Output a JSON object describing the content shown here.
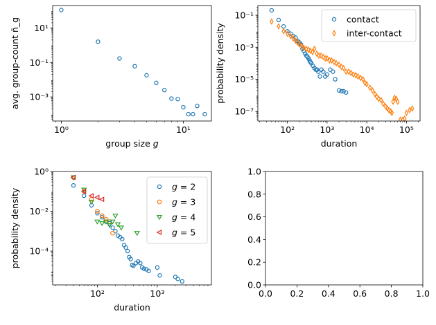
{
  "colors": {
    "blue": "#1f77b4",
    "orange": "#ff7f0e",
    "green": "#2ca02c",
    "red": "#d62728"
  },
  "chart_data": [
    {
      "type": "scatter",
      "xlabel": "group size g",
      "ylabel": "avg. group-count n̄_g",
      "xscale": "log",
      "yscale": "log",
      "xlim": [
        0.85,
        17
      ],
      "ylim": [
        4e-05,
        200
      ],
      "x_ticks": [
        {
          "value": 1,
          "label": "10⁰"
        },
        {
          "value": 10,
          "label": "10¹"
        }
      ],
      "y_ticks": [
        {
          "value": 0.001,
          "label": "10⁻³"
        },
        {
          "value": 0.1,
          "label": "10⁻¹"
        },
        {
          "value": 10,
          "label": "10¹"
        }
      ],
      "legend": null,
      "series": [
        {
          "marker": "circle",
          "color": "#1f77b4",
          "x": [
            1,
            2,
            3,
            4,
            5,
            6,
            7,
            8,
            9,
            10,
            11,
            12,
            13,
            15
          ],
          "y": [
            110,
            1.6,
            0.17,
            0.06,
            0.018,
            0.0065,
            0.0025,
            0.0008,
            0.00075,
            0.00025,
            0.0001,
            0.0001,
            0.0003,
            0.0001
          ]
        }
      ]
    },
    {
      "type": "scatter",
      "xlabel": "duration",
      "ylabel": "probability density",
      "xscale": "log",
      "yscale": "log",
      "xlim": [
        18,
        220000
      ],
      "ylim": [
        2.5e-08,
        0.4
      ],
      "x_ticks": [
        {
          "value": 100,
          "label": "10²"
        },
        {
          "value": 1000,
          "label": "10³"
        },
        {
          "value": 10000,
          "label": "10⁴"
        },
        {
          "value": 100000,
          "label": "10⁵"
        }
      ],
      "y_ticks": [
        {
          "value": 1e-07,
          "label": "10⁻⁷"
        },
        {
          "value": 1e-05,
          "label": "10⁻⁵"
        },
        {
          "value": 0.001,
          "label": "10⁻³"
        },
        {
          "value": 0.1,
          "label": "10⁻¹"
        }
      ],
      "legend": "top-right",
      "series": [
        {
          "name": "contact",
          "marker": "circle",
          "color": "#1f77b4",
          "x": [
            40,
            60,
            80,
            100,
            120,
            140,
            160,
            180,
            200,
            220,
            240,
            260,
            280,
            300,
            320,
            340,
            360,
            380,
            400,
            440,
            480,
            520,
            560,
            600,
            660,
            720,
            800,
            900,
            1000,
            1200,
            1400,
            1600,
            2000,
            2300,
            2600,
            3000
          ],
          "y": [
            0.2,
            0.05,
            0.02,
            0.01,
            0.007,
            0.005,
            0.004,
            0.0025,
            0.002,
            0.0015,
            0.0008,
            0.0006,
            0.0004,
            0.0003,
            0.00025,
            0.0002,
            0.00015,
            0.00012,
            0.0001,
            7e-05,
            5e-05,
            4e-05,
            4e-05,
            3e-05,
            1.5e-05,
            4e-05,
            3e-05,
            1.5e-05,
            2e-05,
            4e-05,
            3e-05,
            1e-05,
            2e-06,
            1.8e-06,
            1.8e-06,
            1.5e-06
          ]
        },
        {
          "name": "inter-contact",
          "marker": "thin_diamond",
          "color": "#ff7f0e",
          "x": [
            40,
            60,
            80,
            100,
            120,
            140,
            160,
            180,
            200,
            230,
            260,
            300,
            340,
            380,
            430,
            480,
            550,
            620,
            700,
            800,
            900,
            1000,
            1150,
            1300,
            1500,
            1700,
            2000,
            2300,
            2600,
            3000,
            3500,
            4000,
            4600,
            5300,
            6000,
            7000,
            8000,
            9000,
            10000,
            12000,
            14000,
            16000,
            18000,
            20000,
            23000,
            26000,
            30000,
            33000,
            36000,
            40000,
            43000,
            46000,
            50000,
            55000,
            60000,
            70000,
            80000,
            90000,
            100000,
            120000,
            140000
          ],
          "y": [
            0.04,
            0.02,
            0.01,
            0.007,
            0.005,
            0.0035,
            0.0025,
            0.002,
            0.0015,
            0.0012,
            0.0009,
            0.0008,
            0.0007,
            0.0006,
            0.0005,
            0.0008,
            0.0004,
            0.0003,
            0.0003,
            0.00025,
            0.0002,
            0.0002,
            0.00015,
            0.00015,
            0.00012,
            0.0001,
            8e-05,
            6e-05,
            5e-05,
            3e-05,
            3e-05,
            2.5e-05,
            2e-05,
            1.8e-05,
            1.5e-05,
            1.2e-05,
            1e-05,
            6e-06,
            5e-06,
            3e-06,
            2e-06,
            1.2e-06,
            8e-07,
            6e-07,
            5e-07,
            3e-07,
            2e-07,
            1.5e-07,
            1.2e-07,
            1e-07,
            8e-08,
            4e-07,
            7e-07,
            6e-07,
            4e-07,
            3e-08,
            3e-08,
            3.5e-08,
            8e-08,
            1.2e-07,
            1.5e-07
          ]
        }
      ]
    },
    {
      "type": "scatter",
      "xlabel": "duration",
      "ylabel": "probability density",
      "xscale": "log",
      "yscale": "log",
      "xlim": [
        18,
        8000
      ],
      "ylim": [
        2e-06,
        1
      ],
      "x_ticks": [
        {
          "value": 100,
          "label": "10²"
        },
        {
          "value": 1000,
          "label": "10³"
        }
      ],
      "y_ticks": [
        {
          "value": 0.0001,
          "label": "10⁻⁴"
        },
        {
          "value": 0.01,
          "label": "10⁻²"
        },
        {
          "value": 1,
          "label": "10⁰"
        }
      ],
      "legend": "top-right",
      "series": [
        {
          "name": "g = 2",
          "marker": "circle",
          "color": "#1f77b4",
          "x": [
            40,
            60,
            80,
            100,
            120,
            140,
            160,
            180,
            200,
            220,
            240,
            260,
            280,
            300,
            320,
            340,
            360,
            380,
            400,
            440,
            480,
            520,
            560,
            600,
            660,
            720,
            1000,
            1100,
            2000,
            2200,
            2600
          ],
          "y": [
            0.2,
            0.06,
            0.02,
            0.008,
            0.005,
            0.003,
            0.0025,
            0.0015,
            0.001,
            0.0006,
            0.0005,
            0.0004,
            0.0002,
            0.00015,
            0.0001,
            5e-05,
            4e-05,
            2e-05,
            1.8e-05,
            2.5e-05,
            3e-05,
            2.5e-05,
            1.5e-05,
            1.3e-05,
            1.2e-05,
            1e-05,
            1.5e-05,
            6e-06,
            5e-06,
            4e-06,
            3e-06
          ]
        },
        {
          "name": "g = 3",
          "marker": "octagon",
          "color": "#ff7f0e",
          "x": [
            40,
            60,
            80,
            100,
            120,
            140,
            160,
            180
          ],
          "y": [
            0.5,
            0.1,
            0.04,
            0.01,
            0.006,
            0.004,
            0.003,
            0.0008
          ]
        },
        {
          "name": "g = 4",
          "marker": "triangle_down",
          "color": "#2ca02c",
          "x": [
            40,
            60,
            80,
            100,
            120,
            140,
            160,
            180,
            200,
            220,
            250,
            460
          ],
          "y": [
            0.5,
            0.12,
            0.03,
            0.003,
            0.0025,
            0.003,
            0.002,
            0.003,
            0.006,
            0.0022,
            0.0015,
            0.0008
          ]
        },
        {
          "name": "g = 5",
          "marker": "triangle_left",
          "color": "#d62728",
          "x": [
            40,
            60,
            80,
            100,
            120
          ],
          "y": [
            0.5,
            0.1,
            0.06,
            0.05,
            0.04
          ]
        }
      ]
    },
    {
      "type": "scatter",
      "xlabel": "",
      "ylabel": "",
      "xscale": "linear",
      "yscale": "linear",
      "xlim": [
        0,
        1
      ],
      "ylim": [
        0,
        1
      ],
      "x_ticks": [
        {
          "value": 0,
          "label": "0.0"
        },
        {
          "value": 0.2,
          "label": "0.2"
        },
        {
          "value": 0.4,
          "label": "0.4"
        },
        {
          "value": 0.6,
          "label": "0.6"
        },
        {
          "value": 0.8,
          "label": "0.8"
        },
        {
          "value": 1,
          "label": "1.0"
        }
      ],
      "y_ticks": [
        {
          "value": 0,
          "label": "0.0"
        },
        {
          "value": 0.2,
          "label": "0.2"
        },
        {
          "value": 0.4,
          "label": "0.4"
        },
        {
          "value": 0.6,
          "label": "0.6"
        },
        {
          "value": 0.8,
          "label": "0.8"
        },
        {
          "value": 1,
          "label": "1.0"
        }
      ],
      "legend": null,
      "series": []
    }
  ]
}
